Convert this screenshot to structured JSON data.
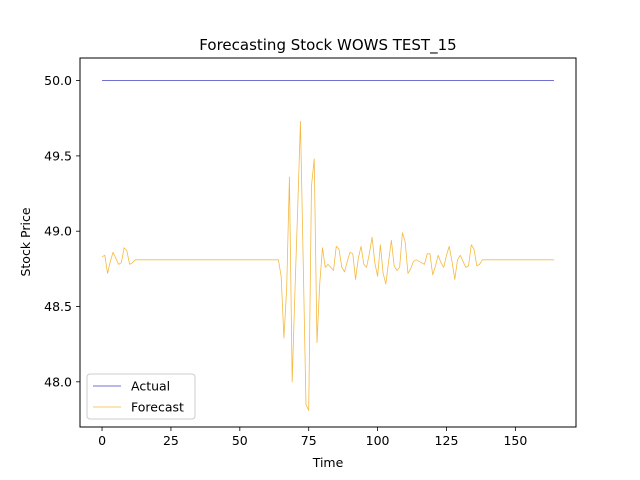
{
  "chart_data": {
    "type": "line",
    "title": "Forecasting Stock WOWS TEST_15",
    "xlabel": "Time",
    "ylabel": "Stock Price",
    "xlim": [
      -8,
      172
    ],
    "ylim": [
      47.7,
      50.15
    ],
    "xticks": [
      0,
      25,
      50,
      75,
      100,
      125,
      150
    ],
    "yticks": [
      48.0,
      48.5,
      49.0,
      49.5,
      50.0
    ],
    "ytick_labels": [
      "48.0",
      "48.5",
      "49.0",
      "49.5",
      "50.0"
    ],
    "grid": false,
    "legend_position": "lower-left",
    "series": [
      {
        "name": "Actual",
        "color": "#4040c0",
        "x": [
          0,
          164
        ],
        "values": [
          50.0,
          50.0
        ]
      },
      {
        "name": "Forecast",
        "color": "#f5b942",
        "x": [
          0,
          1,
          2,
          3,
          4,
          5,
          6,
          7,
          8,
          9,
          10,
          11,
          12,
          13,
          20,
          30,
          40,
          50,
          60,
          64,
          65,
          66,
          67,
          68,
          69,
          70,
          71,
          72,
          73,
          74,
          75,
          76,
          77,
          78,
          79,
          80,
          81,
          82,
          83,
          84,
          85,
          86,
          87,
          88,
          89,
          90,
          91,
          92,
          93,
          94,
          95,
          96,
          97,
          98,
          99,
          100,
          101,
          102,
          103,
          104,
          105,
          106,
          107,
          108,
          109,
          110,
          111,
          112,
          113,
          114,
          115,
          116,
          117,
          118,
          119,
          120,
          121,
          122,
          123,
          124,
          125,
          126,
          127,
          128,
          129,
          130,
          131,
          132,
          133,
          134,
          135,
          136,
          137,
          138,
          139,
          140,
          150,
          160,
          164
        ],
        "values": [
          48.83,
          48.84,
          48.72,
          48.8,
          48.86,
          48.82,
          48.78,
          48.79,
          48.89,
          48.87,
          48.78,
          48.79,
          48.81,
          48.81,
          48.81,
          48.81,
          48.81,
          48.81,
          48.81,
          48.81,
          48.7,
          48.29,
          48.62,
          49.36,
          48.0,
          48.6,
          49.15,
          49.73,
          48.8,
          47.85,
          47.81,
          49.3,
          49.48,
          48.26,
          48.65,
          48.89,
          48.76,
          48.78,
          48.76,
          48.74,
          48.9,
          48.88,
          48.76,
          48.73,
          48.8,
          48.86,
          48.85,
          48.68,
          48.82,
          48.9,
          48.78,
          48.76,
          48.85,
          48.96,
          48.79,
          48.7,
          48.91,
          48.72,
          48.65,
          48.8,
          48.94,
          48.77,
          48.74,
          48.76,
          48.99,
          48.93,
          48.72,
          48.75,
          48.8,
          48.81,
          48.8,
          48.79,
          48.78,
          48.85,
          48.85,
          48.71,
          48.77,
          48.84,
          48.79,
          48.76,
          48.84,
          48.9,
          48.8,
          48.68,
          48.81,
          48.84,
          48.8,
          48.76,
          48.77,
          48.91,
          48.88,
          48.77,
          48.78,
          48.81,
          48.81,
          48.81,
          48.81,
          48.81,
          48.81
        ]
      }
    ]
  }
}
